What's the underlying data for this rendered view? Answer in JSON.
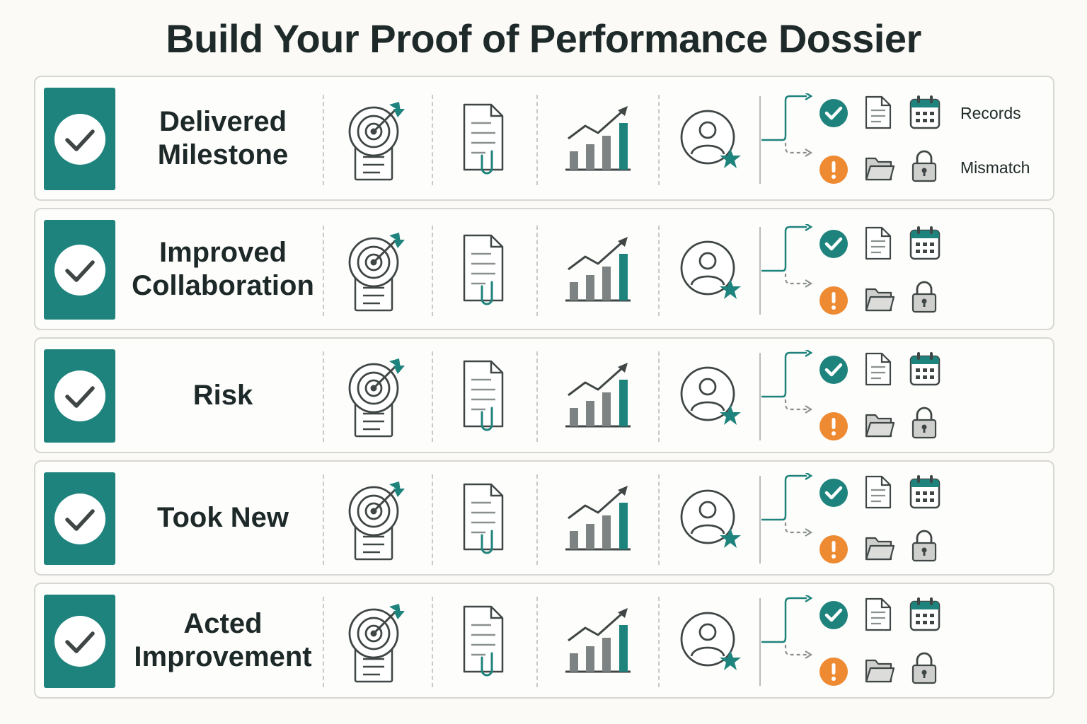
{
  "title": "Build Your Proof of Performance Dossier",
  "rows": [
    {
      "label_lines": [
        "Delivered",
        "Milestone"
      ]
    },
    {
      "label_lines": [
        "Improved",
        "Collaboration"
      ]
    },
    {
      "label_lines": [
        "Risk"
      ]
    },
    {
      "label_lines": [
        "Took New"
      ]
    },
    {
      "label_lines": [
        "Acted",
        "Improvement"
      ]
    }
  ],
  "outcomes": {
    "positive_label": "Records",
    "negative_label": "Mismatch"
  },
  "colors": {
    "teal": "#1f837d",
    "orange": "#ee8a32",
    "ink": "#3f4645",
    "gray_fill": "#cfd0ce"
  },
  "icons": [
    "check-icon",
    "target-arrow-icon",
    "document-attachment-icon",
    "bar-chart-growth-icon",
    "user-star-icon",
    "branch-arrow-icon",
    "check-circle-icon",
    "document-icon",
    "calendar-icon",
    "warning-circle-icon",
    "folder-icon",
    "lock-icon"
  ]
}
